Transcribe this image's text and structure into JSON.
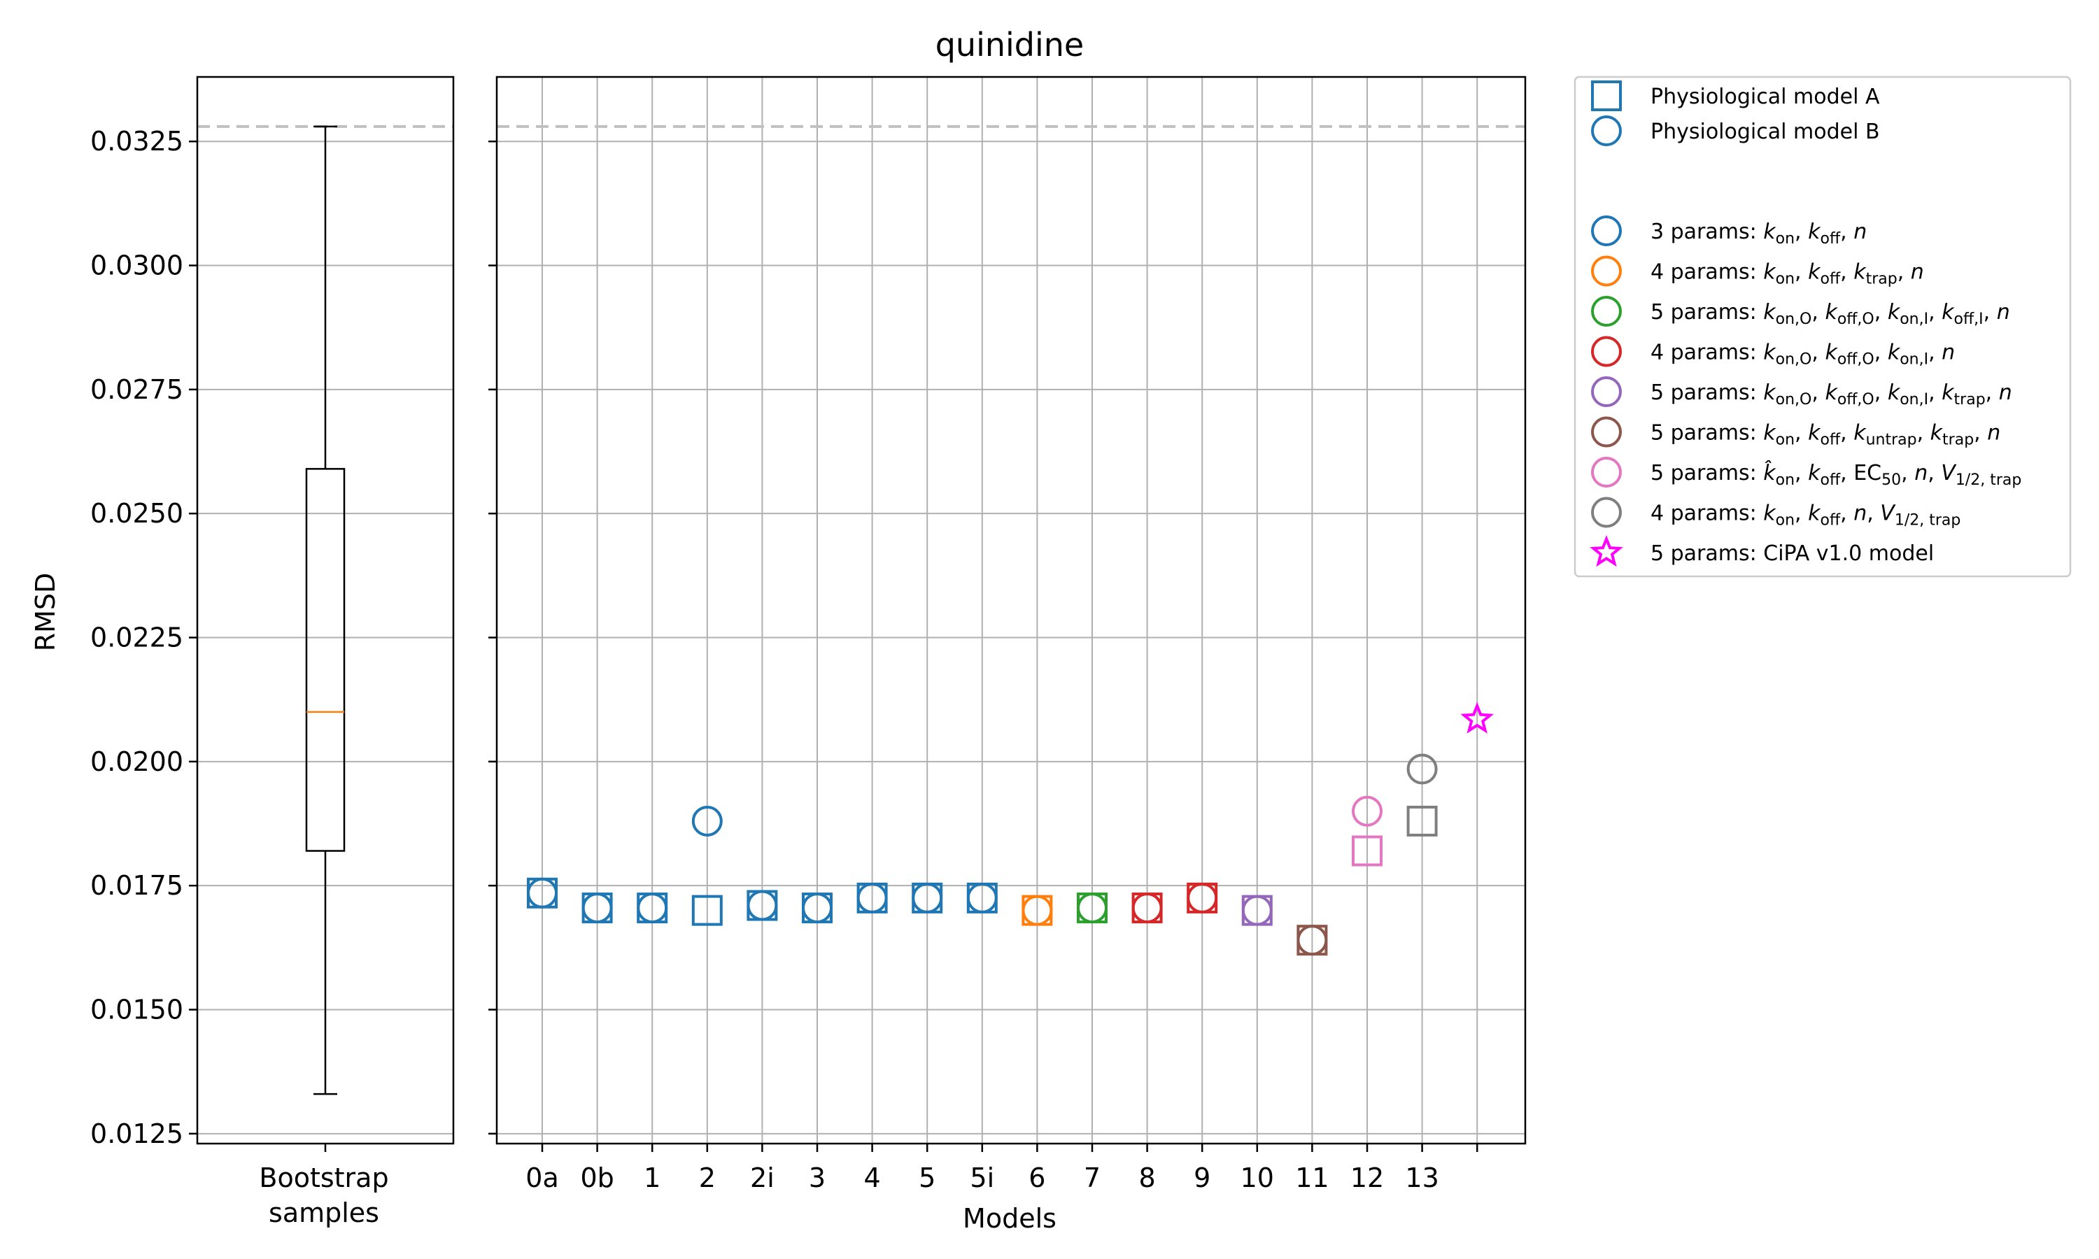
{
  "chart_data": {
    "type": "scatter",
    "title": "quinidine",
    "ylabel": "RMSD",
    "xlabel": "Models",
    "ylim": [
      0.0123,
      0.0338
    ],
    "yticks": [
      0.0125,
      0.015,
      0.0175,
      0.02,
      0.0225,
      0.025,
      0.0275,
      0.03,
      0.0325
    ],
    "ytick_labels": [
      "0.0125",
      "0.0150",
      "0.0175",
      "0.0200",
      "0.0225",
      "0.0250",
      "0.0275",
      "0.0300",
      "0.0325"
    ],
    "grid": true,
    "reference_line": 0.0328,
    "boxplot": {
      "label": [
        "Bootstrap",
        "samples"
      ],
      "whisker_low": 0.0133,
      "q1": 0.0182,
      "median": 0.021,
      "q3": 0.0259,
      "whisker_high": 0.0328
    },
    "categories": [
      "0a",
      "0b",
      "1",
      "2",
      "2i",
      "3",
      "4",
      "5",
      "5i",
      "6",
      "7",
      "8",
      "9",
      "10",
      "11",
      "12",
      "13",
      ""
    ],
    "series": [
      {
        "name": "Physiological model A",
        "marker": "square",
        "points": [
          {
            "x": "0a",
            "y": 0.01735,
            "color": "#1f77b4"
          },
          {
            "x": "0b",
            "y": 0.01705,
            "color": "#1f77b4"
          },
          {
            "x": "1",
            "y": 0.01705,
            "color": "#1f77b4"
          },
          {
            "x": "2",
            "y": 0.017,
            "color": "#1f77b4"
          },
          {
            "x": "2i",
            "y": 0.0171,
            "color": "#1f77b4"
          },
          {
            "x": "3",
            "y": 0.01705,
            "color": "#1f77b4"
          },
          {
            "x": "4",
            "y": 0.01725,
            "color": "#1f77b4"
          },
          {
            "x": "5",
            "y": 0.01725,
            "color": "#1f77b4"
          },
          {
            "x": "5i",
            "y": 0.01725,
            "color": "#1f77b4"
          },
          {
            "x": "6",
            "y": 0.017,
            "color": "#ff7f0e"
          },
          {
            "x": "7",
            "y": 0.01705,
            "color": "#2ca02c"
          },
          {
            "x": "8",
            "y": 0.01705,
            "color": "#d62728"
          },
          {
            "x": "9",
            "y": 0.01725,
            "color": "#d62728"
          },
          {
            "x": "10",
            "y": 0.017,
            "color": "#9467bd"
          },
          {
            "x": "11",
            "y": 0.0164,
            "color": "#8c564b"
          },
          {
            "x": "12",
            "y": 0.0182,
            "color": "#e377c2"
          },
          {
            "x": "13",
            "y": 0.0188,
            "color": "#7f7f7f"
          }
        ]
      },
      {
        "name": "Physiological model B",
        "marker": "circle",
        "points": [
          {
            "x": "0a",
            "y": 0.01735,
            "color": "#1f77b4"
          },
          {
            "x": "0b",
            "y": 0.01705,
            "color": "#1f77b4"
          },
          {
            "x": "1",
            "y": 0.01705,
            "color": "#1f77b4"
          },
          {
            "x": "2",
            "y": 0.0188,
            "color": "#1f77b4"
          },
          {
            "x": "2i",
            "y": 0.0171,
            "color": "#1f77b4"
          },
          {
            "x": "3",
            "y": 0.01705,
            "color": "#1f77b4"
          },
          {
            "x": "4",
            "y": 0.01725,
            "color": "#1f77b4"
          },
          {
            "x": "5",
            "y": 0.01725,
            "color": "#1f77b4"
          },
          {
            "x": "5i",
            "y": 0.01725,
            "color": "#1f77b4"
          },
          {
            "x": "6",
            "y": 0.017,
            "color": "#ff7f0e"
          },
          {
            "x": "7",
            "y": 0.01705,
            "color": "#2ca02c"
          },
          {
            "x": "8",
            "y": 0.01705,
            "color": "#d62728"
          },
          {
            "x": "9",
            "y": 0.01725,
            "color": "#d62728"
          },
          {
            "x": "10",
            "y": 0.017,
            "color": "#9467bd"
          },
          {
            "x": "11",
            "y": 0.0164,
            "color": "#8c564b"
          },
          {
            "x": "12",
            "y": 0.019,
            "color": "#e377c2"
          },
          {
            "x": "13",
            "y": 0.01985,
            "color": "#7f7f7f"
          }
        ]
      },
      {
        "name": "5 params: CiPA v1.0 model",
        "marker": "star",
        "points": [
          {
            "x": "",
            "y": 0.02085,
            "color": "#ff00ff"
          }
        ]
      }
    ],
    "legend": {
      "placement": "outside right, top",
      "model_entries": [
        {
          "label": "Physiological model A",
          "marker": "square",
          "color": "#1f77b4"
        },
        {
          "label": "Physiological model B",
          "marker": "circle",
          "color": "#1f77b4"
        }
      ],
      "param_entries": [
        {
          "marker": "circle",
          "color": "#1f77b4",
          "parts": [
            [
              "t",
              "3 params: "
            ],
            [
              "i",
              "k"
            ],
            [
              "sub",
              "on"
            ],
            [
              "t",
              ", "
            ],
            [
              "i",
              "k"
            ],
            [
              "sub",
              "off"
            ],
            [
              "t",
              ", "
            ],
            [
              "i",
              "n"
            ]
          ]
        },
        {
          "marker": "circle",
          "color": "#ff7f0e",
          "parts": [
            [
              "t",
              "4 params: "
            ],
            [
              "i",
              "k"
            ],
            [
              "sub",
              "on"
            ],
            [
              "t",
              ", "
            ],
            [
              "i",
              "k"
            ],
            [
              "sub",
              "off"
            ],
            [
              "t",
              ", "
            ],
            [
              "i",
              "k"
            ],
            [
              "sub",
              "trap"
            ],
            [
              "t",
              ", "
            ],
            [
              "i",
              "n"
            ]
          ]
        },
        {
          "marker": "circle",
          "color": "#2ca02c",
          "parts": [
            [
              "t",
              "5 params: "
            ],
            [
              "i",
              "k"
            ],
            [
              "sub",
              "on,O"
            ],
            [
              "t",
              ", "
            ],
            [
              "i",
              "k"
            ],
            [
              "sub",
              "off,O"
            ],
            [
              "t",
              ", "
            ],
            [
              "i",
              "k"
            ],
            [
              "sub",
              "on,I"
            ],
            [
              "t",
              ", "
            ],
            [
              "i",
              "k"
            ],
            [
              "sub",
              "off,I"
            ],
            [
              "t",
              ", "
            ],
            [
              "i",
              "n"
            ]
          ]
        },
        {
          "marker": "circle",
          "color": "#d62728",
          "parts": [
            [
              "t",
              "4 params: "
            ],
            [
              "i",
              "k"
            ],
            [
              "sub",
              "on,O"
            ],
            [
              "t",
              ", "
            ],
            [
              "i",
              "k"
            ],
            [
              "sub",
              "off,O"
            ],
            [
              "t",
              ", "
            ],
            [
              "i",
              "k"
            ],
            [
              "sub",
              "on,I"
            ],
            [
              "t",
              ", "
            ],
            [
              "i",
              "n"
            ]
          ]
        },
        {
          "marker": "circle",
          "color": "#9467bd",
          "parts": [
            [
              "t",
              "5 params: "
            ],
            [
              "i",
              "k"
            ],
            [
              "sub",
              "on,O"
            ],
            [
              "t",
              ", "
            ],
            [
              "i",
              "k"
            ],
            [
              "sub",
              "off,O"
            ],
            [
              "t",
              ", "
            ],
            [
              "i",
              "k"
            ],
            [
              "sub",
              "on,I"
            ],
            [
              "t",
              ", "
            ],
            [
              "i",
              "k"
            ],
            [
              "sub",
              "trap"
            ],
            [
              "t",
              ", "
            ],
            [
              "i",
              "n"
            ]
          ]
        },
        {
          "marker": "circle",
          "color": "#8c564b",
          "parts": [
            [
              "t",
              "5 params: "
            ],
            [
              "i",
              "k"
            ],
            [
              "sub",
              "on"
            ],
            [
              "t",
              ", "
            ],
            [
              "i",
              "k"
            ],
            [
              "sub",
              "off"
            ],
            [
              "t",
              ", "
            ],
            [
              "i",
              "k"
            ],
            [
              "sub",
              "untrap"
            ],
            [
              "t",
              ", "
            ],
            [
              "i",
              "k"
            ],
            [
              "sub",
              "trap"
            ],
            [
              "t",
              ", "
            ],
            [
              "i",
              "n"
            ]
          ]
        },
        {
          "marker": "circle",
          "color": "#e377c2",
          "parts": [
            [
              "t",
              "5 params: "
            ],
            [
              "i",
              "k̂"
            ],
            [
              "sub",
              "on"
            ],
            [
              "t",
              ", "
            ],
            [
              "i",
              "k"
            ],
            [
              "sub",
              "off"
            ],
            [
              "t",
              ", EC"
            ],
            [
              "sub",
              "50"
            ],
            [
              "t",
              ", "
            ],
            [
              "i",
              "n"
            ],
            [
              "t",
              ", "
            ],
            [
              "i",
              "V"
            ],
            [
              "sub",
              "1/2, trap"
            ]
          ]
        },
        {
          "marker": "circle",
          "color": "#7f7f7f",
          "parts": [
            [
              "t",
              "4 params: "
            ],
            [
              "i",
              "k"
            ],
            [
              "sub",
              "on"
            ],
            [
              "t",
              ", "
            ],
            [
              "i",
              "k"
            ],
            [
              "sub",
              "off"
            ],
            [
              "t",
              ", "
            ],
            [
              "i",
              "n"
            ],
            [
              "t",
              ", "
            ],
            [
              "i",
              "V"
            ],
            [
              "sub",
              "1/2, trap"
            ]
          ]
        },
        {
          "marker": "star",
          "color": "#ff00ff",
          "parts": [
            [
              "t",
              "5 params: CiPA v1.0 model"
            ]
          ]
        }
      ]
    }
  }
}
